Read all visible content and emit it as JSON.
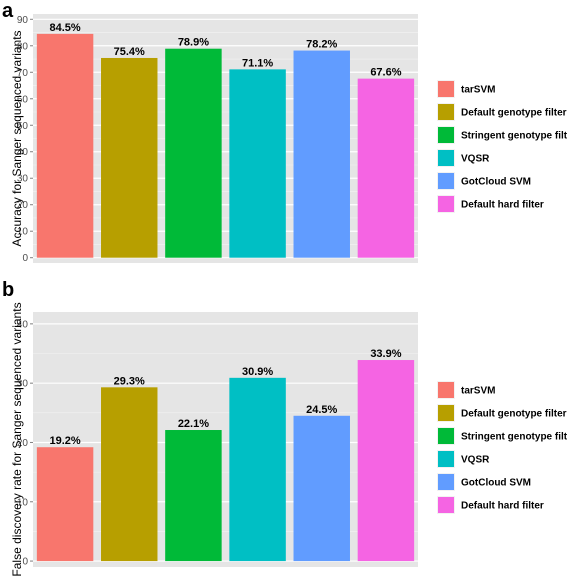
{
  "colors": {
    "panel_bg": "#e5e5e5",
    "legend_key_bg": "#f2f2f2"
  },
  "chart_data": [
    {
      "type": "bar",
      "panel": "a",
      "ylabel": "Accuracy for Sanger sequenced variants",
      "categories": [
        "tarSVM",
        "Default genotype filter",
        "Stringent genotype filter",
        "VQSR",
        "GotCloud SVM",
        "Default hard filter"
      ],
      "values": [
        84.5,
        75.4,
        78.9,
        71.1,
        78.2,
        67.6
      ],
      "data_labels": [
        "84.5%",
        "75.4%",
        "78.9%",
        "71.1%",
        "78.2%",
        "67.6%"
      ],
      "colors": [
        "#f8766d",
        "#b79f00",
        "#00ba38",
        "#00bfc4",
        "#619cff",
        "#f564e3"
      ],
      "yticks": [
        0,
        10,
        20,
        30,
        40,
        50,
        60,
        70,
        80,
        90
      ],
      "ylim": [
        -2,
        92
      ],
      "grid": true,
      "legend": {
        "placement": "right",
        "entries": [
          "tarSVM",
          "Default genotype filter",
          "Stringent genotype filter",
          "VQSR",
          "GotCloud SVM",
          "Default hard filter"
        ]
      }
    },
    {
      "type": "bar",
      "panel": "b",
      "ylabel": "False discovery rate for Sanger sequenced variants",
      "categories": [
        "tarSVM",
        "Default genotype filter",
        "Stringent genotype filter",
        "VQSR",
        "GotCloud SVM",
        "Default hard filter"
      ],
      "values": [
        19.2,
        29.3,
        22.1,
        30.9,
        24.5,
        33.9
      ],
      "data_labels": [
        "19.2%",
        "29.3%",
        "22.1%",
        "30.9%",
        "24.5%",
        "33.9%"
      ],
      "colors": [
        "#f8766d",
        "#b79f00",
        "#00ba38",
        "#00bfc4",
        "#619cff",
        "#f564e3"
      ],
      "yticks": [
        0,
        10,
        20,
        30,
        40
      ],
      "ylim": [
        -1,
        42
      ],
      "grid": true,
      "legend": {
        "placement": "right",
        "entries": [
          "tarSVM",
          "Default genotype filter",
          "Stringent genotype filter",
          "VQSR",
          "GotCloud SVM",
          "Default hard filter"
        ]
      }
    }
  ]
}
